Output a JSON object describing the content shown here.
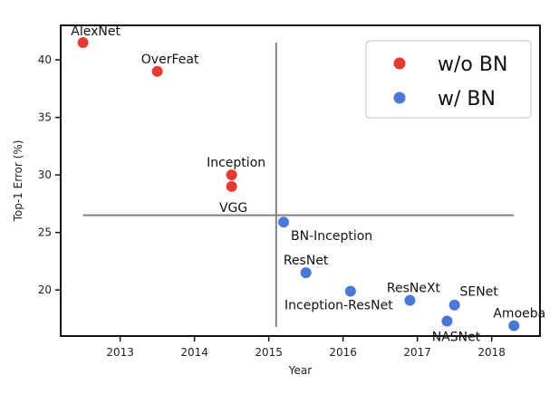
{
  "chart_data": {
    "type": "scatter",
    "title": "",
    "xlabel": "Year",
    "ylabel": "Top-1 Error (%)",
    "xlim": [
      2012.2,
      2018.65
    ],
    "ylim": [
      16.0,
      43.0
    ],
    "xticks": [
      2013,
      2014,
      2015,
      2016,
      2017,
      2018
    ],
    "yticks": [
      20,
      25,
      30,
      35,
      40
    ],
    "grid": false,
    "legend_position": "top-right",
    "series": [
      {
        "name": "w/o BN",
        "color": "#e53935",
        "points": [
          {
            "label": "AlexNet",
            "x": 2012.5,
            "y": 41.5
          },
          {
            "label": "OverFeat",
            "x": 2013.5,
            "y": 39.0
          },
          {
            "label": "Inception",
            "x": 2014.5,
            "y": 30.0
          },
          {
            "label": "VGG",
            "x": 2014.5,
            "y": 29.0
          }
        ]
      },
      {
        "name": "w/ BN",
        "color": "#4a78d2",
        "points": [
          {
            "label": "BN-Inception",
            "x": 2015.2,
            "y": 25.9
          },
          {
            "label": "ResNet",
            "x": 2015.5,
            "y": 21.5
          },
          {
            "label": "Inception-ResNet",
            "x": 2016.1,
            "y": 19.9
          },
          {
            "label": "ResNeXt",
            "x": 2016.9,
            "y": 19.1
          },
          {
            "label": "SENet",
            "x": 2017.5,
            "y": 18.7
          },
          {
            "label": "NASNet",
            "x": 2017.4,
            "y": 17.3
          },
          {
            "label": "Amoeba",
            "x": 2018.3,
            "y": 16.9
          }
        ]
      }
    ],
    "reference_lines": [
      {
        "orientation": "horizontal",
        "y": 26.5,
        "x_from": 2012.5,
        "x_to": 2018.3
      },
      {
        "orientation": "vertical",
        "x": 2015.1,
        "y_from": 16.8,
        "y_to": 41.5
      }
    ]
  }
}
